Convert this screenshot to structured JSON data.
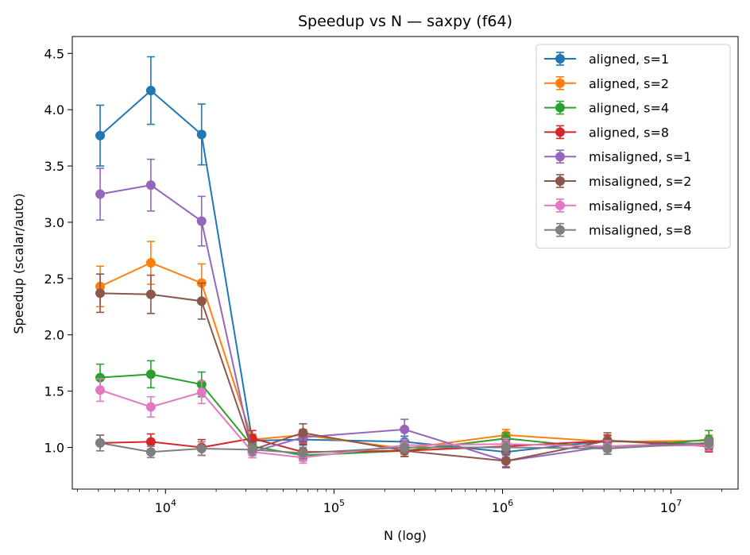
{
  "chart_data": {
    "type": "line",
    "title": "Speedup vs N — saxpy (f64)",
    "xlabel": "N (log)",
    "ylabel": "Speedup (scalar/auto)",
    "xscale": "log",
    "xlim": [
      2800,
      25000000
    ],
    "ylim": [
      0.63,
      4.65
    ],
    "x": [
      4096,
      8192,
      16384,
      32768,
      65536,
      262144,
      1048576,
      4194304,
      16777216
    ],
    "x_ticks": [
      {
        "value": 10000,
        "base": "10",
        "exp": "4"
      },
      {
        "value": 100000,
        "base": "10",
        "exp": "5"
      },
      {
        "value": 1000000,
        "base": "10",
        "exp": "6"
      },
      {
        "value": 10000000,
        "base": "10",
        "exp": "7"
      }
    ],
    "y_ticks": [
      {
        "value": 1.0,
        "label": "1.0"
      },
      {
        "value": 1.5,
        "label": "1.5"
      },
      {
        "value": 2.0,
        "label": "2.0"
      },
      {
        "value": 2.5,
        "label": "2.5"
      },
      {
        "value": 3.0,
        "label": "3.0"
      },
      {
        "value": 3.5,
        "label": "3.5"
      },
      {
        "value": 4.0,
        "label": "4.0"
      },
      {
        "value": 4.5,
        "label": "4.5"
      }
    ],
    "grid": false,
    "legend_position": "top-right",
    "series": [
      {
        "name": "aligned, s=1",
        "color": "#1f77b4",
        "values": [
          3.77,
          4.17,
          3.78,
          1.06,
          1.07,
          1.05,
          0.96,
          1.06,
          1.03
        ],
        "errors": [
          0.27,
          0.3,
          0.27,
          0.05,
          0.05,
          0.05,
          0.05,
          0.05,
          0.05
        ]
      },
      {
        "name": "aligned, s=2",
        "color": "#ff7f0e",
        "values": [
          2.43,
          2.64,
          2.46,
          1.07,
          1.11,
          0.99,
          1.11,
          1.05,
          1.06
        ],
        "errors": [
          0.18,
          0.19,
          0.17,
          0.05,
          0.05,
          0.05,
          0.05,
          0.05,
          0.05
        ]
      },
      {
        "name": "aligned, s=4",
        "color": "#2ca02c",
        "values": [
          1.62,
          1.65,
          1.56,
          1.01,
          0.93,
          0.97,
          1.08,
          0.99,
          1.07
        ],
        "errors": [
          0.12,
          0.12,
          0.11,
          0.05,
          0.05,
          0.05,
          0.05,
          0.05,
          0.08
        ]
      },
      {
        "name": "aligned, s=8",
        "color": "#d62728",
        "values": [
          1.04,
          1.05,
          1.0,
          1.08,
          0.96,
          0.97,
          1.01,
          1.06,
          1.01
        ],
        "errors": [
          0.07,
          0.07,
          0.07,
          0.07,
          0.07,
          0.05,
          0.05,
          0.05,
          0.05
        ]
      },
      {
        "name": "misaligned, s=1",
        "color": "#9467bd",
        "values": [
          3.25,
          3.33,
          3.01,
          0.96,
          1.09,
          1.16,
          0.88,
          1.01,
          1.04
        ],
        "errors": [
          0.23,
          0.23,
          0.22,
          0.05,
          0.05,
          0.09,
          0.05,
          0.05,
          0.05
        ]
      },
      {
        "name": "misaligned, s=2",
        "color": "#8c564b",
        "values": [
          2.37,
          2.36,
          2.3,
          0.98,
          1.13,
          0.97,
          0.88,
          1.06,
          1.02
        ],
        "errors": [
          0.17,
          0.17,
          0.16,
          0.07,
          0.08,
          0.05,
          0.06,
          0.07,
          0.05
        ]
      },
      {
        "name": "misaligned, s=4",
        "color": "#e377c2",
        "values": [
          1.51,
          1.36,
          1.49,
          0.96,
          0.91,
          1.02,
          1.03,
          1.01,
          1.02
        ],
        "errors": [
          0.1,
          0.09,
          0.1,
          0.05,
          0.05,
          0.05,
          0.05,
          0.05,
          0.05
        ]
      },
      {
        "name": "misaligned, s=8",
        "color": "#7f7f7f",
        "values": [
          1.04,
          0.96,
          0.99,
          0.98,
          0.95,
          1.0,
          1.0,
          0.99,
          1.04
        ],
        "errors": [
          0.07,
          0.05,
          0.06,
          0.05,
          0.05,
          0.05,
          0.05,
          0.05,
          0.05
        ]
      }
    ]
  }
}
